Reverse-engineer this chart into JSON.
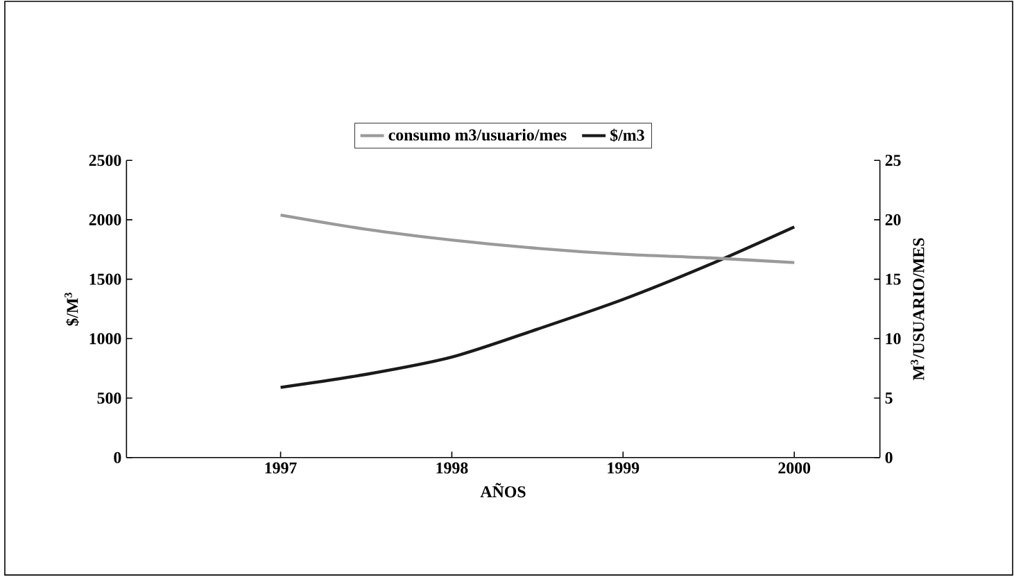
{
  "chart_data": {
    "type": "line",
    "xlabel": "AÑOS",
    "ylabel": "$/M$^{3}$",
    "y2label": "M$^{3}$/USUARIO/MES",
    "x": [
      1997,
      1997.5,
      1998,
      1998.5,
      1999,
      1999.5,
      2000
    ],
    "xlim": [
      1996.1,
      2000.5
    ],
    "xticks": [
      1997,
      1998,
      1999,
      2000
    ],
    "ylim": [
      0,
      2500
    ],
    "yticks": [
      0,
      500,
      1000,
      1500,
      2000,
      2500
    ],
    "y2lim": [
      0,
      25
    ],
    "y2ticks": [
      0,
      5,
      10,
      15,
      20,
      25
    ],
    "legend": "top",
    "grid": false,
    "series": [
      {
        "name": "consumo m3/usuario/mes",
        "color": "#9a9a9a",
        "axis": "y2",
        "values": [
          20.4,
          19.2,
          18.3,
          17.6,
          17.1,
          16.8,
          16.4
        ]
      },
      {
        "name": "$/m3",
        "color": "#1a1a1a",
        "axis": "y",
        "values": [
          590,
          700,
          845,
          1080,
          1330,
          1620,
          1940
        ]
      }
    ]
  }
}
